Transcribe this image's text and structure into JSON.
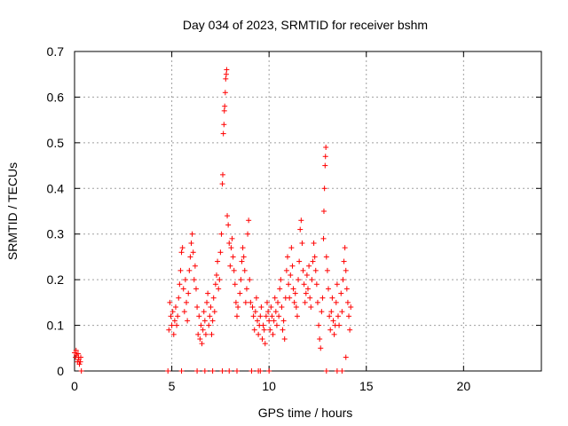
{
  "chart_data": {
    "type": "scatter",
    "title": "Day 034 of 2023, SRMTID for receiver bshm",
    "xlabel": "GPS time / hours",
    "ylabel": "SRMTID / TECUs",
    "xlim": [
      0,
      24
    ],
    "ylim": [
      0,
      0.7
    ],
    "xticks": [
      0,
      5,
      10,
      15,
      20
    ],
    "yticks": [
      0,
      0.1,
      0.2,
      0.3,
      0.4,
      0.5,
      0.6,
      0.7
    ],
    "xtick_labels": [
      "0",
      "5",
      "10",
      "15",
      "20"
    ],
    "ytick_labels": [
      "0",
      "0.1",
      "0.2",
      "0.3",
      "0.4",
      "0.5",
      "0.6",
      "0.7"
    ],
    "grid": true,
    "marker": "plus",
    "color": "#ff0000",
    "series": [
      {
        "name": "SRMTID",
        "points": [
          [
            0.0,
            0.04
          ],
          [
            0.05,
            0.03
          ],
          [
            0.1,
            0.035
          ],
          [
            0.15,
            0.02
          ],
          [
            0.2,
            0.03
          ],
          [
            0.22,
            0.025
          ],
          [
            0.25,
            0.015
          ],
          [
            0.3,
            0.02
          ],
          [
            0.32,
            0.03
          ],
          [
            0.35,
            0.0
          ],
          [
            0.08,
            0.045
          ],
          [
            0.18,
            0.038
          ],
          [
            4.8,
            0.0
          ],
          [
            4.85,
            0.09
          ],
          [
            4.9,
            0.15
          ],
          [
            4.95,
            0.12
          ],
          [
            5.0,
            0.1
          ],
          [
            5.05,
            0.13
          ],
          [
            5.1,
            0.08
          ],
          [
            5.15,
            0.11
          ],
          [
            5.2,
            0.14
          ],
          [
            5.25,
            0.1
          ],
          [
            5.3,
            0.12
          ],
          [
            5.35,
            0.16
          ],
          [
            5.4,
            0.19
          ],
          [
            5.45,
            0.22
          ],
          [
            5.5,
            0.0
          ],
          [
            5.5,
            0.26
          ],
          [
            5.55,
            0.27
          ],
          [
            5.6,
            0.18
          ],
          [
            5.65,
            0.13
          ],
          [
            5.7,
            0.2
          ],
          [
            5.75,
            0.15
          ],
          [
            5.8,
            0.11
          ],
          [
            5.85,
            0.17
          ],
          [
            5.9,
            0.22
          ],
          [
            5.95,
            0.25
          ],
          [
            6.0,
            0.28
          ],
          [
            6.05,
            0.3
          ],
          [
            6.1,
            0.26
          ],
          [
            6.15,
            0.2
          ],
          [
            6.2,
            0.23
          ],
          [
            6.25,
            0.18
          ],
          [
            6.3,
            0.14
          ],
          [
            6.3,
            0.0
          ],
          [
            6.35,
            0.08
          ],
          [
            6.4,
            0.12
          ],
          [
            6.45,
            0.07
          ],
          [
            6.5,
            0.1
          ],
          [
            6.55,
            0.06
          ],
          [
            6.6,
            0.09
          ],
          [
            6.65,
            0.13
          ],
          [
            6.7,
            0.0
          ],
          [
            6.7,
            0.11
          ],
          [
            6.75,
            0.08
          ],
          [
            6.8,
            0.15
          ],
          [
            6.85,
            0.17
          ],
          [
            6.9,
            0.1
          ],
          [
            6.95,
            0.12
          ],
          [
            7.0,
            0.14
          ],
          [
            7.05,
            0.08
          ],
          [
            7.1,
            0.0
          ],
          [
            7.1,
            0.11
          ],
          [
            7.15,
            0.16
          ],
          [
            7.2,
            0.13
          ],
          [
            7.25,
            0.19
          ],
          [
            7.3,
            0.21
          ],
          [
            7.35,
            0.24
          ],
          [
            7.4,
            0.18
          ],
          [
            7.45,
            0.2
          ],
          [
            7.5,
            0.26
          ],
          [
            7.55,
            0.3
          ],
          [
            7.6,
            0.0
          ],
          [
            7.6,
            0.41
          ],
          [
            7.62,
            0.43
          ],
          [
            7.65,
            0.52
          ],
          [
            7.68,
            0.54
          ],
          [
            7.7,
            0.57
          ],
          [
            7.72,
            0.58
          ],
          [
            7.75,
            0.61
          ],
          [
            7.77,
            0.64
          ],
          [
            7.8,
            0.65
          ],
          [
            7.82,
            0.66
          ],
          [
            7.85,
            0.34
          ],
          [
            7.9,
            0.32
          ],
          [
            7.95,
            0.28
          ],
          [
            8.0,
            0.23
          ],
          [
            8.05,
            0.27
          ],
          [
            8.1,
            0.29
          ],
          [
            8.15,
            0.25
          ],
          [
            8.2,
            0.22
          ],
          [
            8.25,
            0.19
          ],
          [
            8.3,
            0.15
          ],
          [
            8.35,
            0.12
          ],
          [
            8.4,
            0.14
          ],
          [
            8.5,
            0.17
          ],
          [
            8.55,
            0.2
          ],
          [
            8.6,
            0.24
          ],
          [
            8.65,
            0.27
          ],
          [
            8.7,
            0.25
          ],
          [
            8.75,
            0.22
          ],
          [
            8.8,
            0.15
          ],
          [
            8.85,
            0.18
          ],
          [
            8.9,
            0.3
          ],
          [
            8.95,
            0.33
          ],
          [
            9.0,
            0.2
          ],
          [
            9.05,
            0.15
          ],
          [
            9.1,
            0.0
          ],
          [
            9.15,
            0.14
          ],
          [
            9.2,
            0.12
          ],
          [
            9.25,
            0.09
          ],
          [
            9.3,
            0.13
          ],
          [
            9.35,
            0.16
          ],
          [
            9.4,
            0.11
          ],
          [
            9.45,
            0.08
          ],
          [
            9.5,
            0.1
          ],
          [
            9.55,
            0.0
          ],
          [
            9.55,
            0.12
          ],
          [
            9.6,
            0.14
          ],
          [
            9.65,
            0.07
          ],
          [
            9.7,
            0.1
          ],
          [
            9.75,
            0.09
          ],
          [
            9.8,
            0.06
          ],
          [
            9.85,
            0.12
          ],
          [
            9.9,
            0.15
          ],
          [
            9.95,
            0.13
          ],
          [
            10.0,
            0.0
          ],
          [
            10.0,
            0.11
          ],
          [
            10.05,
            0.09
          ],
          [
            10.1,
            0.14
          ],
          [
            10.15,
            0.12
          ],
          [
            10.2,
            0.08
          ],
          [
            10.25,
            0.11
          ],
          [
            10.3,
            0.16
          ],
          [
            10.35,
            0.13
          ],
          [
            10.4,
            0.1
          ],
          [
            10.45,
            0.15
          ],
          [
            10.5,
            0.12
          ],
          [
            10.55,
            0.18
          ],
          [
            10.6,
            0.2
          ],
          [
            10.65,
            0.14
          ],
          [
            10.7,
            0.09
          ],
          [
            10.75,
            0.11
          ],
          [
            10.8,
            0.07
          ],
          [
            10.85,
            0.16
          ],
          [
            10.9,
            0.22
          ],
          [
            10.95,
            0.25
          ],
          [
            11.0,
            0.19
          ],
          [
            11.05,
            0.16
          ],
          [
            11.1,
            0.21
          ],
          [
            11.15,
            0.27
          ],
          [
            11.2,
            0.23
          ],
          [
            11.25,
            0.18
          ],
          [
            11.3,
            0.15
          ],
          [
            11.35,
            0.17
          ],
          [
            11.4,
            0.14
          ],
          [
            11.45,
            0.12
          ],
          [
            11.5,
            0.2
          ],
          [
            11.55,
            0.24
          ],
          [
            11.6,
            0.31
          ],
          [
            11.65,
            0.33
          ],
          [
            11.7,
            0.28
          ],
          [
            11.75,
            0.22
          ],
          [
            11.8,
            0.19
          ],
          [
            11.85,
            0.15
          ],
          [
            11.9,
            0.17
          ],
          [
            11.95,
            0.21
          ],
          [
            12.0,
            0.18
          ],
          [
            12.05,
            0.23
          ],
          [
            12.1,
            0.16
          ],
          [
            12.15,
            0.14
          ],
          [
            12.2,
            0.2
          ],
          [
            12.25,
            0.24
          ],
          [
            12.3,
            0.28
          ],
          [
            12.35,
            0.25
          ],
          [
            12.4,
            0.22
          ],
          [
            12.45,
            0.19
          ],
          [
            12.5,
            0.15
          ],
          [
            12.55,
            0.1
          ],
          [
            12.6,
            0.07
          ],
          [
            12.65,
            0.05
          ],
          [
            12.7,
            0.13
          ],
          [
            12.75,
            0.16
          ],
          [
            12.8,
            0.29
          ],
          [
            12.82,
            0.35
          ],
          [
            12.85,
            0.4
          ],
          [
            12.88,
            0.45
          ],
          [
            12.9,
            0.47
          ],
          [
            12.92,
            0.49
          ],
          [
            12.95,
            0.25
          ],
          [
            13.0,
            0.22
          ],
          [
            13.05,
            0.18
          ],
          [
            13.1,
            0.12
          ],
          [
            13.15,
            0.09
          ],
          [
            13.2,
            0.13
          ],
          [
            13.25,
            0.16
          ],
          [
            13.3,
            0.11
          ],
          [
            13.35,
            0.08
          ],
          [
            13.4,
            0.1
          ],
          [
            13.45,
            0.15
          ],
          [
            13.5,
            0.0
          ],
          [
            13.5,
            0.19
          ],
          [
            13.55,
            0.12
          ],
          [
            13.6,
            0.1
          ],
          [
            13.7,
            0.17
          ],
          [
            13.75,
            0.13
          ],
          [
            13.8,
            0.2
          ],
          [
            13.85,
            0.24
          ],
          [
            13.9,
            0.27
          ],
          [
            13.95,
            0.22
          ],
          [
            14.0,
            0.18
          ],
          [
            14.05,
            0.15
          ],
          [
            14.1,
            0.12
          ],
          [
            14.15,
            0.09
          ],
          [
            14.2,
            0.14
          ],
          [
            13.95,
            0.03
          ],
          [
            12.95,
            0.0
          ],
          [
            9.45,
            0.0
          ],
          [
            8.35,
            0.0
          ],
          [
            7.95,
            0.0
          ],
          [
            13.75,
            0.0
          ]
        ]
      }
    ]
  }
}
